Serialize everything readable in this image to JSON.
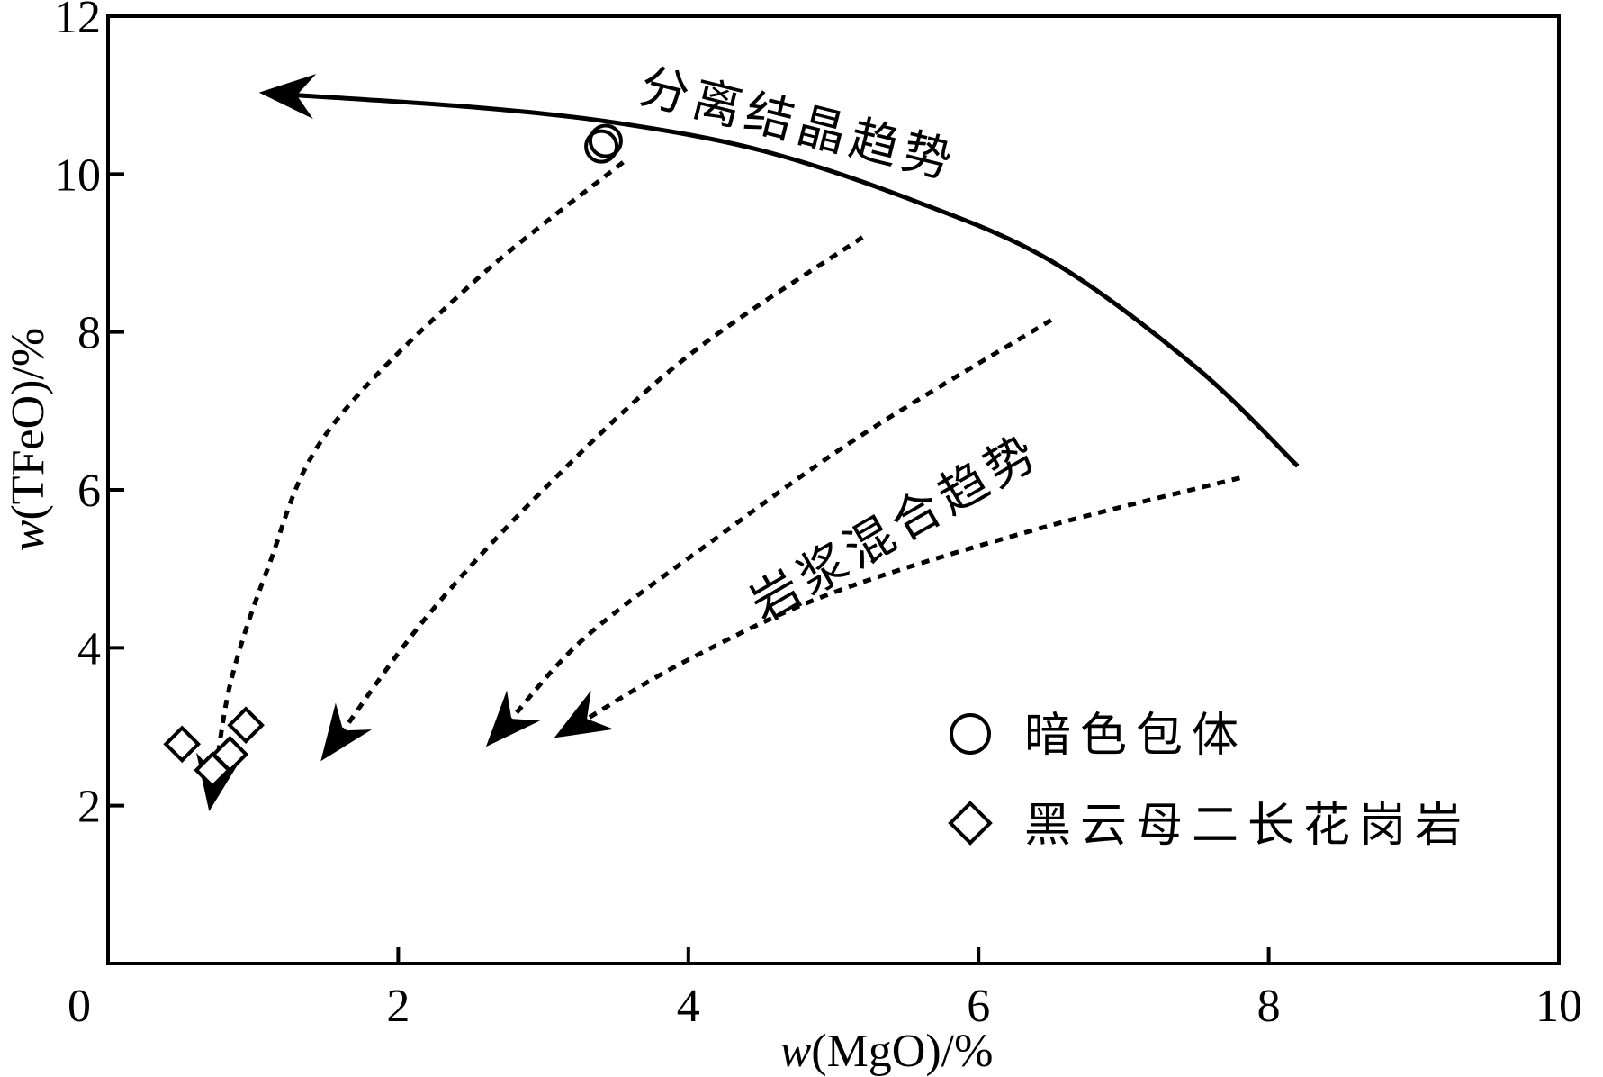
{
  "chart_data": {
    "type": "scatter",
    "xlabel_var": "w",
    "xlabel_rest": "(MgO)/%",
    "ylabel_var": "w",
    "ylabel_rest": "(TFeO)/%",
    "xlim": [
      0,
      10
    ],
    "ylim": [
      0,
      12
    ],
    "x_ticks": [
      0,
      2,
      4,
      6,
      8,
      10
    ],
    "y_ticks": [
      2,
      4,
      6,
      8,
      10,
      12
    ],
    "x_tick_labels": [
      "0",
      "2",
      "4",
      "6",
      "8",
      "10"
    ],
    "y_tick_labels": [
      "2",
      "4",
      "6",
      "8",
      "10",
      "12"
    ],
    "series": [
      {
        "name": "暗色包体",
        "marker": "circle",
        "points": [
          [
            3.4,
            10.35
          ],
          [
            3.43,
            10.42
          ]
        ]
      },
      {
        "name": "黑云母二长花岗岩",
        "marker": "diamond",
        "points": [
          [
            0.51,
            2.78
          ],
          [
            0.72,
            2.45
          ],
          [
            0.84,
            2.65
          ],
          [
            0.95,
            3.02
          ]
        ]
      }
    ],
    "trends": [
      {
        "id": "fractional",
        "style": "solid",
        "points": [
          [
            8.2,
            6.3
          ],
          [
            7.5,
            7.55
          ],
          [
            6.5,
            8.9
          ],
          [
            5.5,
            9.7
          ],
          [
            4.5,
            10.3
          ],
          [
            3.5,
            10.65
          ],
          [
            2.5,
            10.85
          ],
          [
            1.3,
            11.0
          ]
        ]
      },
      {
        "id": "mix-1",
        "style": "dashed",
        "points": [
          [
            3.55,
            10.15
          ],
          [
            2.5,
            8.6
          ],
          [
            1.5,
            6.7
          ],
          [
            1.1,
            5.0
          ],
          [
            0.85,
            3.6
          ],
          [
            0.74,
            2.4
          ]
        ]
      },
      {
        "id": "mix-2",
        "style": "dashed",
        "points": [
          [
            5.2,
            9.2
          ],
          [
            4.0,
            7.7
          ],
          [
            3.0,
            6.0
          ],
          [
            2.2,
            4.4
          ],
          [
            1.62,
            2.95
          ]
        ]
      },
      {
        "id": "mix-3",
        "style": "dashed",
        "points": [
          [
            6.5,
            8.15
          ],
          [
            5.2,
            6.7
          ],
          [
            4.2,
            5.4
          ],
          [
            3.3,
            4.15
          ],
          [
            2.78,
            3.1
          ]
        ]
      },
      {
        "id": "mix-4",
        "style": "dashed",
        "points": [
          [
            7.8,
            6.15
          ],
          [
            6.4,
            5.5
          ],
          [
            5.0,
            4.7
          ],
          [
            4.0,
            3.85
          ],
          [
            3.3,
            3.1
          ]
        ]
      }
    ],
    "annotations": [
      {
        "id": "fractional-label",
        "text": "分离结晶趋势"
      },
      {
        "id": "mixing-label",
        "text": "岩浆混合趋势"
      }
    ],
    "legend_position": "bottom-right"
  }
}
